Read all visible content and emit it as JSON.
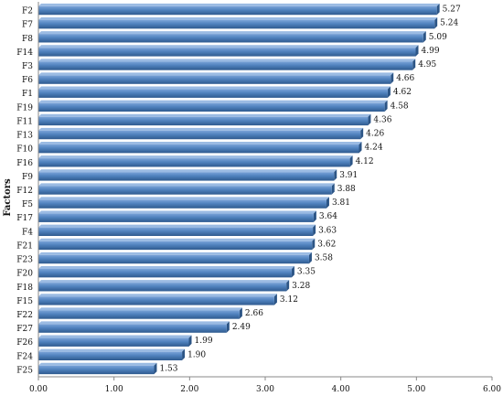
{
  "chart_data": {
    "type": "bar",
    "orientation": "horizontal",
    "title": "",
    "xlabel": "",
    "ylabel": "Factors",
    "xlim": [
      0,
      6
    ],
    "xticks": [
      "0.00",
      "1.00",
      "2.00",
      "3.00",
      "4.00",
      "5.00",
      "6.00"
    ],
    "grid": false,
    "bar_color": "#4f81bd",
    "categories": [
      "F2",
      "F7",
      "F8",
      "F14",
      "F3",
      "F6",
      "F1",
      "F19",
      "F11",
      "F13",
      "F10",
      "F16",
      "F9",
      "F12",
      "F5",
      "F17",
      "F4",
      "F21",
      "F23",
      "F20",
      "F18",
      "F15",
      "F22",
      "F27",
      "F26",
      "F24",
      "F25"
    ],
    "values": [
      5.27,
      5.24,
      5.09,
      4.99,
      4.95,
      4.66,
      4.62,
      4.58,
      4.36,
      4.26,
      4.24,
      4.12,
      3.91,
      3.88,
      3.81,
      3.64,
      3.63,
      3.62,
      3.58,
      3.35,
      3.28,
      3.12,
      2.66,
      2.49,
      1.99,
      1.9,
      1.53
    ],
    "value_labels": [
      "5.27",
      "5.24",
      "5.09",
      "4.99",
      "4.95",
      "4.66",
      "4.62",
      "4.58",
      "4.36",
      "4.26",
      "4.24",
      "4.12",
      "3.91",
      "3.88",
      "3.81",
      "3.64",
      "3.63",
      "3.62",
      "3.58",
      "3.35",
      "3.28",
      "3.12",
      "2.66",
      "2.49",
      "1.99",
      "1.90",
      "1.53"
    ]
  }
}
